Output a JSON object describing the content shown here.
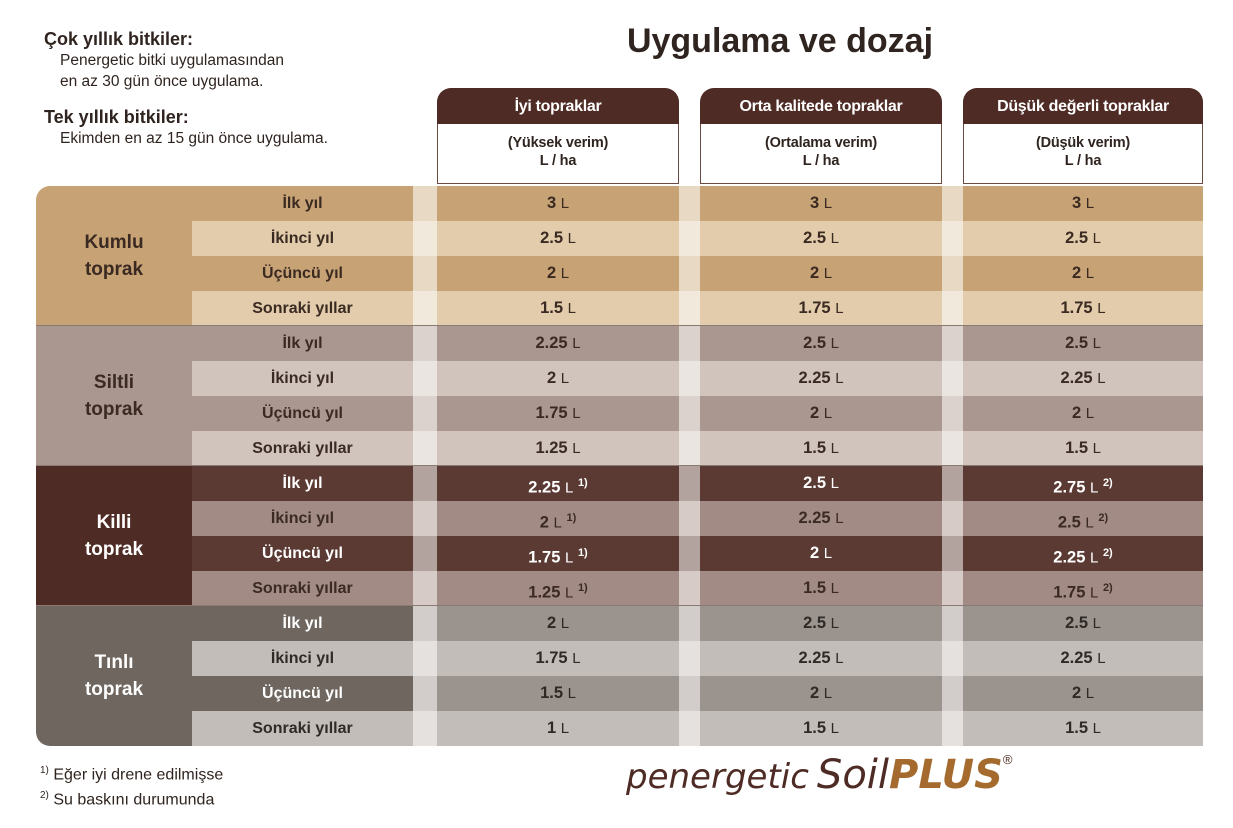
{
  "notes": {
    "perennial": {
      "title": "Çok yıllık bitkiler:",
      "line1": "Penergetic bitki uygulamasından",
      "line2": "en az 30 gün önce uygulama."
    },
    "annual": {
      "title": "Tek yıllık bitkiler:",
      "line1": "Ekimden en az 15 gün önce uygulama."
    }
  },
  "title": "Uygulama ve dozaj",
  "columns": [
    {
      "title": "İyi topraklar",
      "subtitle": "(Yüksek verim)",
      "unit": "L / ha"
    },
    {
      "title": "Orta kalitede topraklar",
      "subtitle": "(Ortalama verim)",
      "unit": "L / ha"
    },
    {
      "title": "Düşük değerli topraklar",
      "subtitle": "(Düşük verim)",
      "unit": "L / ha"
    }
  ],
  "unit_label": "L",
  "soils": [
    {
      "line1": "Kumlu",
      "line2": "toprak",
      "colors": {
        "dark": "#c7a274",
        "light": "#e2ccab",
        "label_bg": "#c7a274",
        "text": "#3a2a22",
        "sep_dark": "#e8d9c4",
        "sep_light": "#f2e9dd"
      },
      "rows": [
        {
          "label": "İlk yıl",
          "values": [
            [
              "3",
              ""
            ],
            [
              "3",
              ""
            ],
            [
              "3",
              ""
            ]
          ]
        },
        {
          "label": "İkinci yıl",
          "values": [
            [
              "2.5",
              ""
            ],
            [
              "2.5",
              ""
            ],
            [
              "2.5",
              ""
            ]
          ]
        },
        {
          "label": "Üçüncü yıl",
          "values": [
            [
              "2",
              ""
            ],
            [
              "2",
              ""
            ],
            [
              "2",
              ""
            ]
          ]
        },
        {
          "label": "Sonraki yıllar",
          "values": [
            [
              "1.5",
              ""
            ],
            [
              "1.75",
              ""
            ],
            [
              "1.75",
              ""
            ]
          ]
        }
      ]
    },
    {
      "line1": "Siltli",
      "line2": "toprak",
      "colors": {
        "dark": "#aa978f",
        "light": "#d1c4bd",
        "label_bg": "#aa978f",
        "text": "#3a2a22",
        "sep_dark": "#dcd2cd",
        "sep_light": "#ebe5e1"
      },
      "rows": [
        {
          "label": "İlk yıl",
          "values": [
            [
              "2.25",
              ""
            ],
            [
              "2.5",
              ""
            ],
            [
              "2.5",
              ""
            ]
          ]
        },
        {
          "label": "İkinci yıl",
          "values": [
            [
              "2",
              ""
            ],
            [
              "2.25",
              ""
            ],
            [
              "2.25",
              ""
            ]
          ]
        },
        {
          "label": "Üçüncü yıl",
          "values": [
            [
              "1.75",
              ""
            ],
            [
              "2",
              ""
            ],
            [
              "2",
              ""
            ]
          ]
        },
        {
          "label": "Sonraki yıllar",
          "values": [
            [
              "1.25",
              ""
            ],
            [
              "1.5",
              ""
            ],
            [
              "1.5",
              ""
            ]
          ]
        }
      ]
    },
    {
      "line1": "Killi",
      "line2": "toprak",
      "colors": {
        "dark": "#5a3a33",
        "light": "#a28b84",
        "label_bg": "#4e2b24",
        "text": "#ffffff",
        "light_text": "#3a2a22",
        "sep_dark": "#b3a39e",
        "sep_light": "#d6cbc7"
      },
      "rows": [
        {
          "label": "İlk yıl",
          "values": [
            [
              "2.25",
              "1)"
            ],
            [
              "2.5",
              ""
            ],
            [
              "2.75",
              "2)"
            ]
          ]
        },
        {
          "label": "İkinci yıl",
          "values": [
            [
              "2",
              "1)"
            ],
            [
              "2.25",
              ""
            ],
            [
              "2.5",
              "2)"
            ]
          ]
        },
        {
          "label": "Üçüncü yıl",
          "values": [
            [
              "1.75",
              "1)"
            ],
            [
              "2",
              ""
            ],
            [
              "2.25",
              "2)"
            ]
          ]
        },
        {
          "label": "Sonraki yıllar",
          "values": [
            [
              "1.25",
              "1)"
            ],
            [
              "1.5",
              ""
            ],
            [
              "1.75",
              "2)"
            ]
          ]
        }
      ]
    },
    {
      "line1": "Tınlı",
      "line2": "toprak",
      "colors": {
        "dark": "#9a938e",
        "light": "#c2bdb9",
        "label_bg": "#6e665f",
        "label_dark": "#6e665f",
        "text": "#2f2a26",
        "label_text": "#ffffff",
        "sep_dark": "#d2cdca",
        "sep_light": "#e4e1df"
      },
      "rows": [
        {
          "label": "İlk yıl",
          "values": [
            [
              "2",
              ""
            ],
            [
              "2.5",
              ""
            ],
            [
              "2.5",
              ""
            ]
          ]
        },
        {
          "label": "İkinci yıl",
          "values": [
            [
              "1.75",
              ""
            ],
            [
              "2.25",
              ""
            ],
            [
              "2.25",
              ""
            ]
          ]
        },
        {
          "label": "Üçüncü yıl",
          "values": [
            [
              "1.5",
              ""
            ],
            [
              "2",
              ""
            ],
            [
              "2",
              ""
            ]
          ]
        },
        {
          "label": "Sonraki yıllar",
          "values": [
            [
              "1",
              ""
            ],
            [
              "1.5",
              ""
            ],
            [
              "1.5",
              ""
            ]
          ]
        }
      ]
    }
  ],
  "footnotes": [
    {
      "mark": "1)",
      "text": "Eğer iyi drene edilmişse"
    },
    {
      "mark": "2)",
      "text": "Su baskını durumunda"
    }
  ],
  "brand": {
    "name": "penergetic",
    "soil": "Soil",
    "plus": "PLUS",
    "reg": "®"
  }
}
